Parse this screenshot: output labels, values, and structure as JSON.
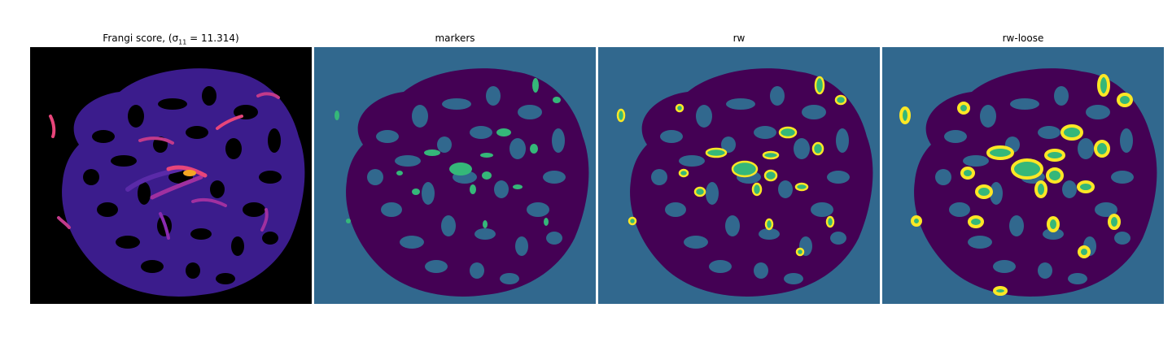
{
  "panels": [
    {
      "title_prefix": "Frangi score, (σ",
      "title_sub": "11",
      "title_suffix": " = 11.314)"
    },
    {
      "title": "markers"
    },
    {
      "title": "rw"
    },
    {
      "title": "rw-loose"
    }
  ],
  "colors": {
    "frangi_bg": "#000000",
    "frangi_blob": "#3b1c8c",
    "frangi_mid": "#5a2aa8",
    "frangi_hot": "#e8457a",
    "frangi_peak": "#f5a623",
    "label_background": "#31688e",
    "label_foreground": "#440154",
    "label_marker": "#35b779",
    "label_edge": "#fde725"
  }
}
